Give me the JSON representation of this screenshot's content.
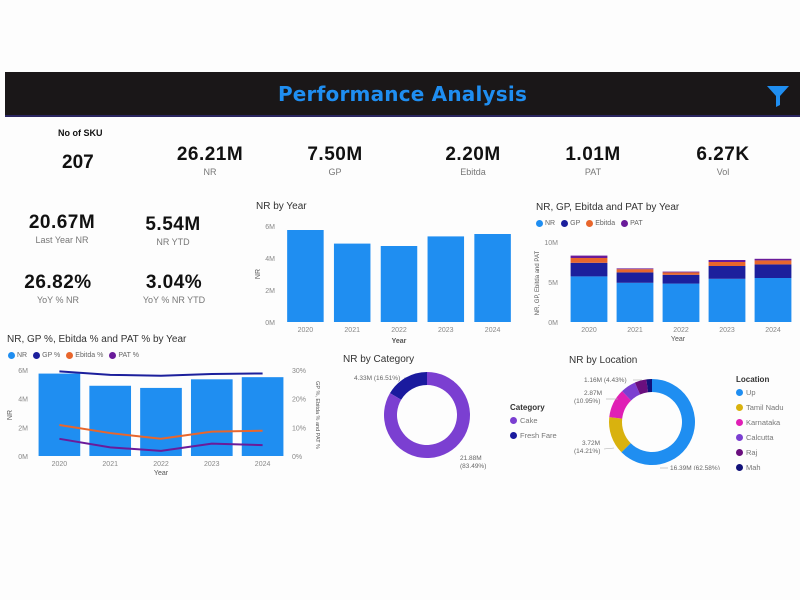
{
  "header": {
    "title": "Performance Analysis",
    "filter_icon": "funnel-icon",
    "bg": "#1a1718",
    "title_color": "#1f8ef1"
  },
  "kpis_top": {
    "sku": {
      "label": "No of SKU",
      "value": "207"
    },
    "items": [
      {
        "value": "26.21M",
        "label": "NR"
      },
      {
        "value": "7.50M",
        "label": "GP"
      },
      {
        "value": "2.20M",
        "label": "Ebitda"
      },
      {
        "value": "1.01M",
        "label": "PAT"
      },
      {
        "value": "6.27K",
        "label": "Vol"
      }
    ]
  },
  "kpis_left": [
    {
      "value": "20.67M",
      "label": "Last Year NR"
    },
    {
      "value": "5.54M",
      "label": "NR YTD"
    },
    {
      "value": "26.82%",
      "label": "YoY % NR"
    },
    {
      "value": "3.04%",
      "label": "YoY % NR YTD"
    }
  ],
  "colors": {
    "nr": "#1f8ef1",
    "gp": "#1c1f9c",
    "ebitda": "#e8662c",
    "pat": "#6a1b9a",
    "cake": "#7b3fd1",
    "fresh_fare": "#1a1a9e",
    "up": "#1f8ef1",
    "tamil_nadu": "#d9b20e",
    "karnataka": "#e01fb5",
    "calcutta": "#7b3fd1",
    "raj": "#6a0f7e",
    "mah": "#12127a"
  },
  "chart_data": [
    {
      "id": "nr_by_year",
      "type": "bar",
      "title": "NR by Year",
      "xlabel": "Year",
      "ylabel": "NR",
      "categories": [
        "2020",
        "2021",
        "2022",
        "2023",
        "2024"
      ],
      "values": [
        5.75,
        4.9,
        4.75,
        5.35,
        5.5
      ],
      "unit": "M",
      "ylim": [
        0,
        6
      ],
      "yticks": [
        "0M",
        "2M",
        "4M",
        "6M"
      ],
      "grid": false
    },
    {
      "id": "nr_gp_ebitda_pat",
      "type": "bar",
      "stacked": true,
      "title": "NR, GP, Ebitda and PAT by Year",
      "xlabel": "Year",
      "ylabel": "NR, GP, Ebitda and PAT",
      "legend": [
        "NR",
        "GP",
        "Ebitda",
        "PAT"
      ],
      "legend_position": "top-left",
      "categories": [
        "2020",
        "2021",
        "2022",
        "2023",
        "2024"
      ],
      "series": [
        {
          "name": "NR",
          "values": [
            5.7,
            4.9,
            4.8,
            5.4,
            5.5
          ]
        },
        {
          "name": "GP",
          "values": [
            1.7,
            1.3,
            1.1,
            1.6,
            1.7
          ]
        },
        {
          "name": "Ebitda",
          "values": [
            0.6,
            0.4,
            0.3,
            0.5,
            0.5
          ]
        },
        {
          "name": "PAT",
          "values": [
            0.3,
            0.1,
            0.1,
            0.25,
            0.2
          ]
        }
      ],
      "unit": "M",
      "ylim": [
        0,
        10
      ],
      "yticks": [
        "0M",
        "5M",
        "10M"
      ]
    },
    {
      "id": "nr_pct_combo",
      "type": "bar",
      "combo": "line",
      "title": "NR, GP %, Ebitda % and PAT % by Year",
      "xlabel": "Year",
      "ylabel": "NR",
      "y2label": "GP %, Ebitda % and PAT %",
      "legend": [
        "NR",
        "GP %",
        "Ebitda %",
        "PAT %"
      ],
      "legend_position": "top-left",
      "categories": [
        "2020",
        "2021",
        "2022",
        "2023",
        "2024"
      ],
      "bars": {
        "name": "NR",
        "values": [
          5.75,
          4.9,
          4.75,
          5.35,
          5.5
        ]
      },
      "lines": [
        {
          "name": "GP %",
          "values": [
            29.5,
            28.3,
            28.0,
            28.6,
            28.8
          ]
        },
        {
          "name": "Ebitda %",
          "values": [
            10.8,
            8.0,
            6.0,
            8.5,
            8.8
          ]
        },
        {
          "name": "PAT %",
          "values": [
            6.0,
            3.0,
            1.8,
            4.3,
            3.8
          ]
        }
      ],
      "ylim": [
        0,
        6
      ],
      "yticks": [
        "0M",
        "2M",
        "4M",
        "6M"
      ],
      "y2lim": [
        0,
        30
      ],
      "y2ticks": [
        "0%",
        "10%",
        "20%",
        "30%"
      ]
    },
    {
      "id": "nr_by_category",
      "type": "pie",
      "donut": true,
      "title": "NR by Category",
      "legend_title": "Category",
      "legend_position": "right",
      "slices": [
        {
          "name": "Cake",
          "value": 21.88,
          "label": "21.88M",
          "pct_label": "(83.49%)"
        },
        {
          "name": "Fresh Fare",
          "value": 4.33,
          "label": "4.33M",
          "pct_label": "(16.51%)"
        }
      ],
      "labels": [
        {
          "text": "4.33M (16.51%)"
        },
        {
          "text": "21.88M"
        },
        {
          "text": "(83.49%)"
        }
      ]
    },
    {
      "id": "nr_by_location",
      "type": "pie",
      "donut": true,
      "title": "NR by Location",
      "legend_title": "Location",
      "legend_position": "right",
      "slices": [
        {
          "name": "Up",
          "value": 16.39,
          "pct": 62.58
        },
        {
          "name": "Tamil Nadu",
          "value": 3.72,
          "pct": 14.21
        },
        {
          "name": "Karnataka",
          "value": 2.87,
          "pct": 10.95
        },
        {
          "name": "Calcutta",
          "value": 1.5,
          "pct": 5.7
        },
        {
          "name": "Raj",
          "value": 1.16,
          "pct": 4.43
        },
        {
          "name": "Mah",
          "value": 0.55,
          "pct": 2.1
        }
      ],
      "labels": [
        {
          "text": "1.16M (4.43%)"
        },
        {
          "text": "2.87M"
        },
        {
          "text": "(10.95%)"
        },
        {
          "text": "3.72M"
        },
        {
          "text": "(14.21%)"
        },
        {
          "text": "16.39M (62.58%)"
        }
      ]
    }
  ]
}
